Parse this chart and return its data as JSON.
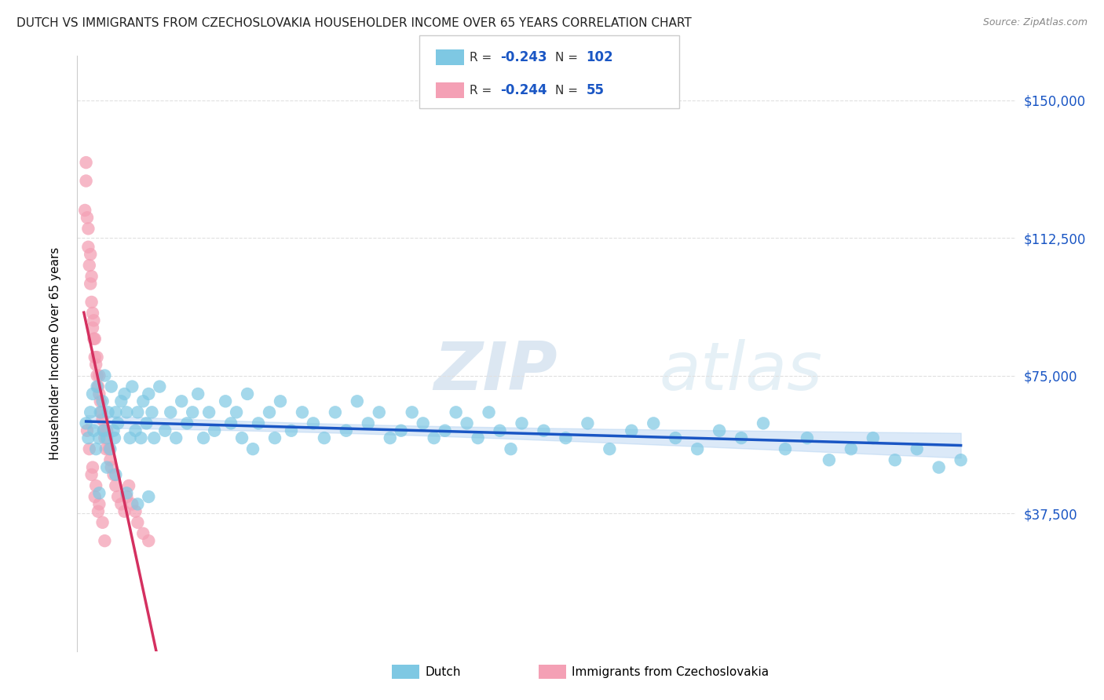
{
  "title": "DUTCH VS IMMIGRANTS FROM CZECHOSLOVAKIA HOUSEHOLDER INCOME OVER 65 YEARS CORRELATION CHART",
  "source": "Source: ZipAtlas.com",
  "ylabel": "Householder Income Over 65 years",
  "watermark": "ZIPatlas",
  "legend_dutch_R": "-0.243",
  "legend_dutch_N": "102",
  "legend_czech_R": "-0.244",
  "legend_czech_N": "55",
  "yticks_labels": [
    "$37,500",
    "$75,000",
    "$112,500",
    "$150,000"
  ],
  "yticks_values": [
    37500,
    75000,
    112500,
    150000
  ],
  "ymin": 0,
  "ymax": 162000,
  "xmin": -0.005,
  "xmax": 0.85,
  "dutch_color": "#7ec8e3",
  "czech_color": "#f4a0b5",
  "trend_dutch_color": "#1a56c4",
  "trend_czech_color": "#d43060",
  "trend_dutch_ci_color": "#b0d0f0",
  "trend_czech_dash_color": "#d0a0b0",
  "text_color": "#1a56c4",
  "title_color": "#222222",
  "grid_color": "#e0e0e0",
  "dutch_x": [
    0.003,
    0.005,
    0.007,
    0.009,
    0.01,
    0.012,
    0.013,
    0.015,
    0.016,
    0.018,
    0.019,
    0.02,
    0.022,
    0.023,
    0.025,
    0.026,
    0.028,
    0.029,
    0.03,
    0.032,
    0.035,
    0.038,
    0.04,
    0.043,
    0.045,
    0.048,
    0.05,
    0.053,
    0.055,
    0.058,
    0.06,
    0.063,
    0.065,
    0.07,
    0.075,
    0.08,
    0.085,
    0.09,
    0.095,
    0.1,
    0.105,
    0.11,
    0.115,
    0.12,
    0.13,
    0.135,
    0.14,
    0.145,
    0.15,
    0.155,
    0.16,
    0.17,
    0.175,
    0.18,
    0.19,
    0.2,
    0.21,
    0.22,
    0.23,
    0.24,
    0.25,
    0.26,
    0.27,
    0.28,
    0.29,
    0.3,
    0.31,
    0.32,
    0.33,
    0.34,
    0.35,
    0.36,
    0.37,
    0.38,
    0.39,
    0.4,
    0.42,
    0.44,
    0.46,
    0.48,
    0.5,
    0.52,
    0.54,
    0.56,
    0.58,
    0.6,
    0.62,
    0.64,
    0.66,
    0.68,
    0.7,
    0.72,
    0.74,
    0.76,
    0.78,
    0.8,
    0.015,
    0.022,
    0.03,
    0.04,
    0.05,
    0.06
  ],
  "dutch_y": [
    62000,
    58000,
    65000,
    70000,
    60000,
    55000,
    72000,
    58000,
    65000,
    68000,
    60000,
    75000,
    58000,
    65000,
    55000,
    72000,
    60000,
    58000,
    65000,
    62000,
    68000,
    70000,
    65000,
    58000,
    72000,
    60000,
    65000,
    58000,
    68000,
    62000,
    70000,
    65000,
    58000,
    72000,
    60000,
    65000,
    58000,
    68000,
    62000,
    65000,
    70000,
    58000,
    65000,
    60000,
    68000,
    62000,
    65000,
    58000,
    70000,
    55000,
    62000,
    65000,
    58000,
    68000,
    60000,
    65000,
    62000,
    58000,
    65000,
    60000,
    68000,
    62000,
    65000,
    58000,
    60000,
    65000,
    62000,
    58000,
    60000,
    65000,
    62000,
    58000,
    65000,
    60000,
    55000,
    62000,
    60000,
    58000,
    62000,
    55000,
    60000,
    62000,
    58000,
    55000,
    60000,
    58000,
    62000,
    55000,
    58000,
    52000,
    55000,
    58000,
    52000,
    55000,
    50000,
    52000,
    43000,
    50000,
    48000,
    43000,
    40000,
    42000
  ],
  "czech_x": [
    0.002,
    0.003,
    0.003,
    0.004,
    0.005,
    0.005,
    0.006,
    0.007,
    0.007,
    0.008,
    0.008,
    0.009,
    0.009,
    0.01,
    0.01,
    0.011,
    0.011,
    0.012,
    0.013,
    0.013,
    0.014,
    0.015,
    0.015,
    0.016,
    0.017,
    0.018,
    0.019,
    0.02,
    0.021,
    0.022,
    0.024,
    0.025,
    0.026,
    0.028,
    0.03,
    0.032,
    0.035,
    0.038,
    0.04,
    0.042,
    0.045,
    0.048,
    0.05,
    0.055,
    0.06,
    0.004,
    0.006,
    0.009,
    0.012,
    0.015,
    0.018,
    0.008,
    0.011,
    0.014,
    0.02
  ],
  "czech_y": [
    120000,
    128000,
    133000,
    118000,
    110000,
    115000,
    105000,
    108000,
    100000,
    95000,
    102000,
    88000,
    92000,
    85000,
    90000,
    80000,
    85000,
    78000,
    75000,
    80000,
    72000,
    70000,
    75000,
    68000,
    65000,
    63000,
    60000,
    58000,
    55000,
    60000,
    55000,
    52000,
    50000,
    48000,
    45000,
    42000,
    40000,
    38000,
    42000,
    45000,
    40000,
    38000,
    35000,
    32000,
    30000,
    60000,
    55000,
    50000,
    45000,
    40000,
    35000,
    48000,
    42000,
    38000,
    30000
  ]
}
